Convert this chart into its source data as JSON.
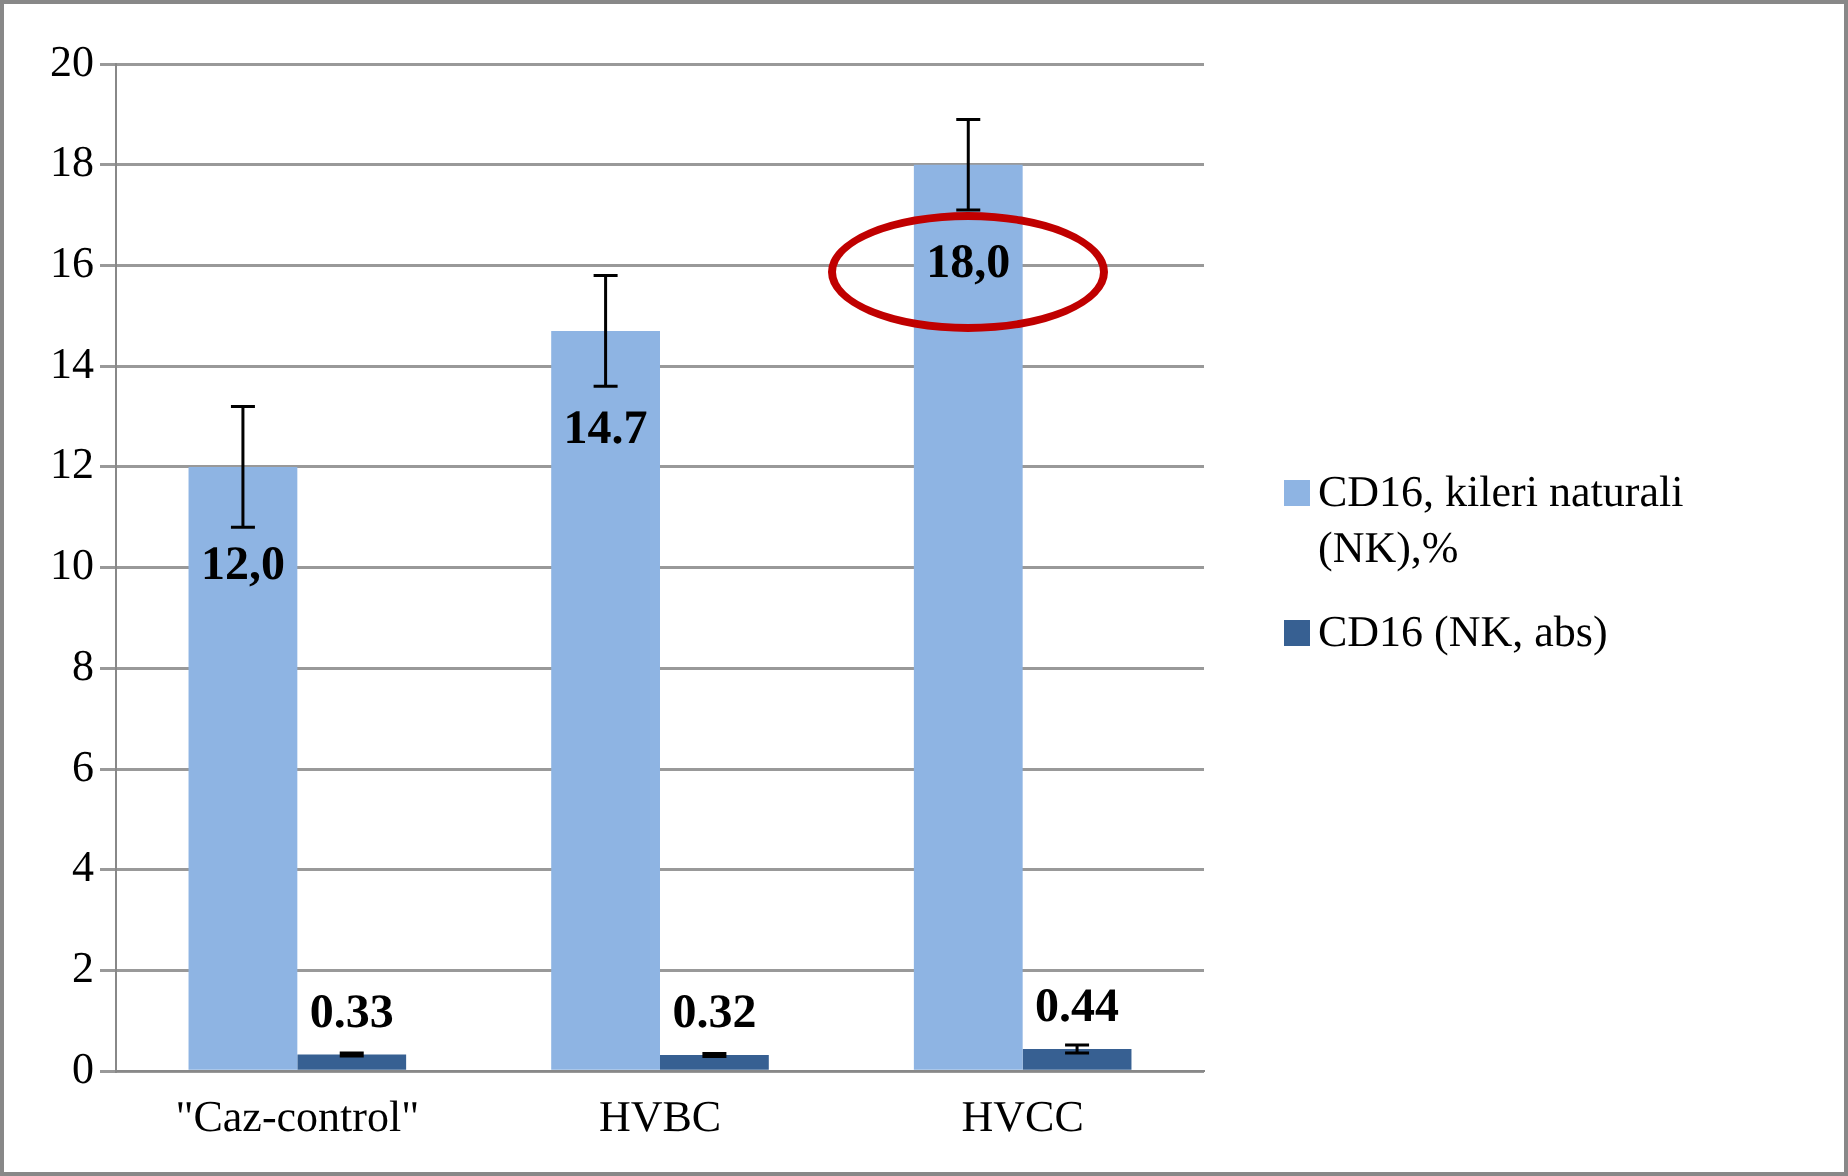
{
  "chart_data": {
    "type": "bar",
    "categories": [
      "\"Caz-control\"",
      "HVBC",
      "HVCC"
    ],
    "series": [
      {
        "name": "CD16, kileri naturali (NK),%",
        "color": "#8eb4e3",
        "values": [
          12.0,
          14.7,
          18.0
        ],
        "errors": [
          1.2,
          1.1,
          0.9
        ],
        "value_labels": [
          "12,0",
          "14.7",
          "18,0"
        ]
      },
      {
        "name": "CD16 (NK, abs)",
        "color": "#376092",
        "values": [
          0.33,
          0.32,
          0.44
        ],
        "errors": [
          0.03,
          0.03,
          0.08
        ],
        "value_labels": [
          "0.33",
          "0.32",
          "0.44"
        ]
      }
    ],
    "ylim": [
      0,
      20
    ],
    "yticks": [
      0,
      2,
      4,
      6,
      8,
      10,
      12,
      14,
      16,
      18,
      20
    ],
    "grid": "y",
    "legend": "right"
  }
}
